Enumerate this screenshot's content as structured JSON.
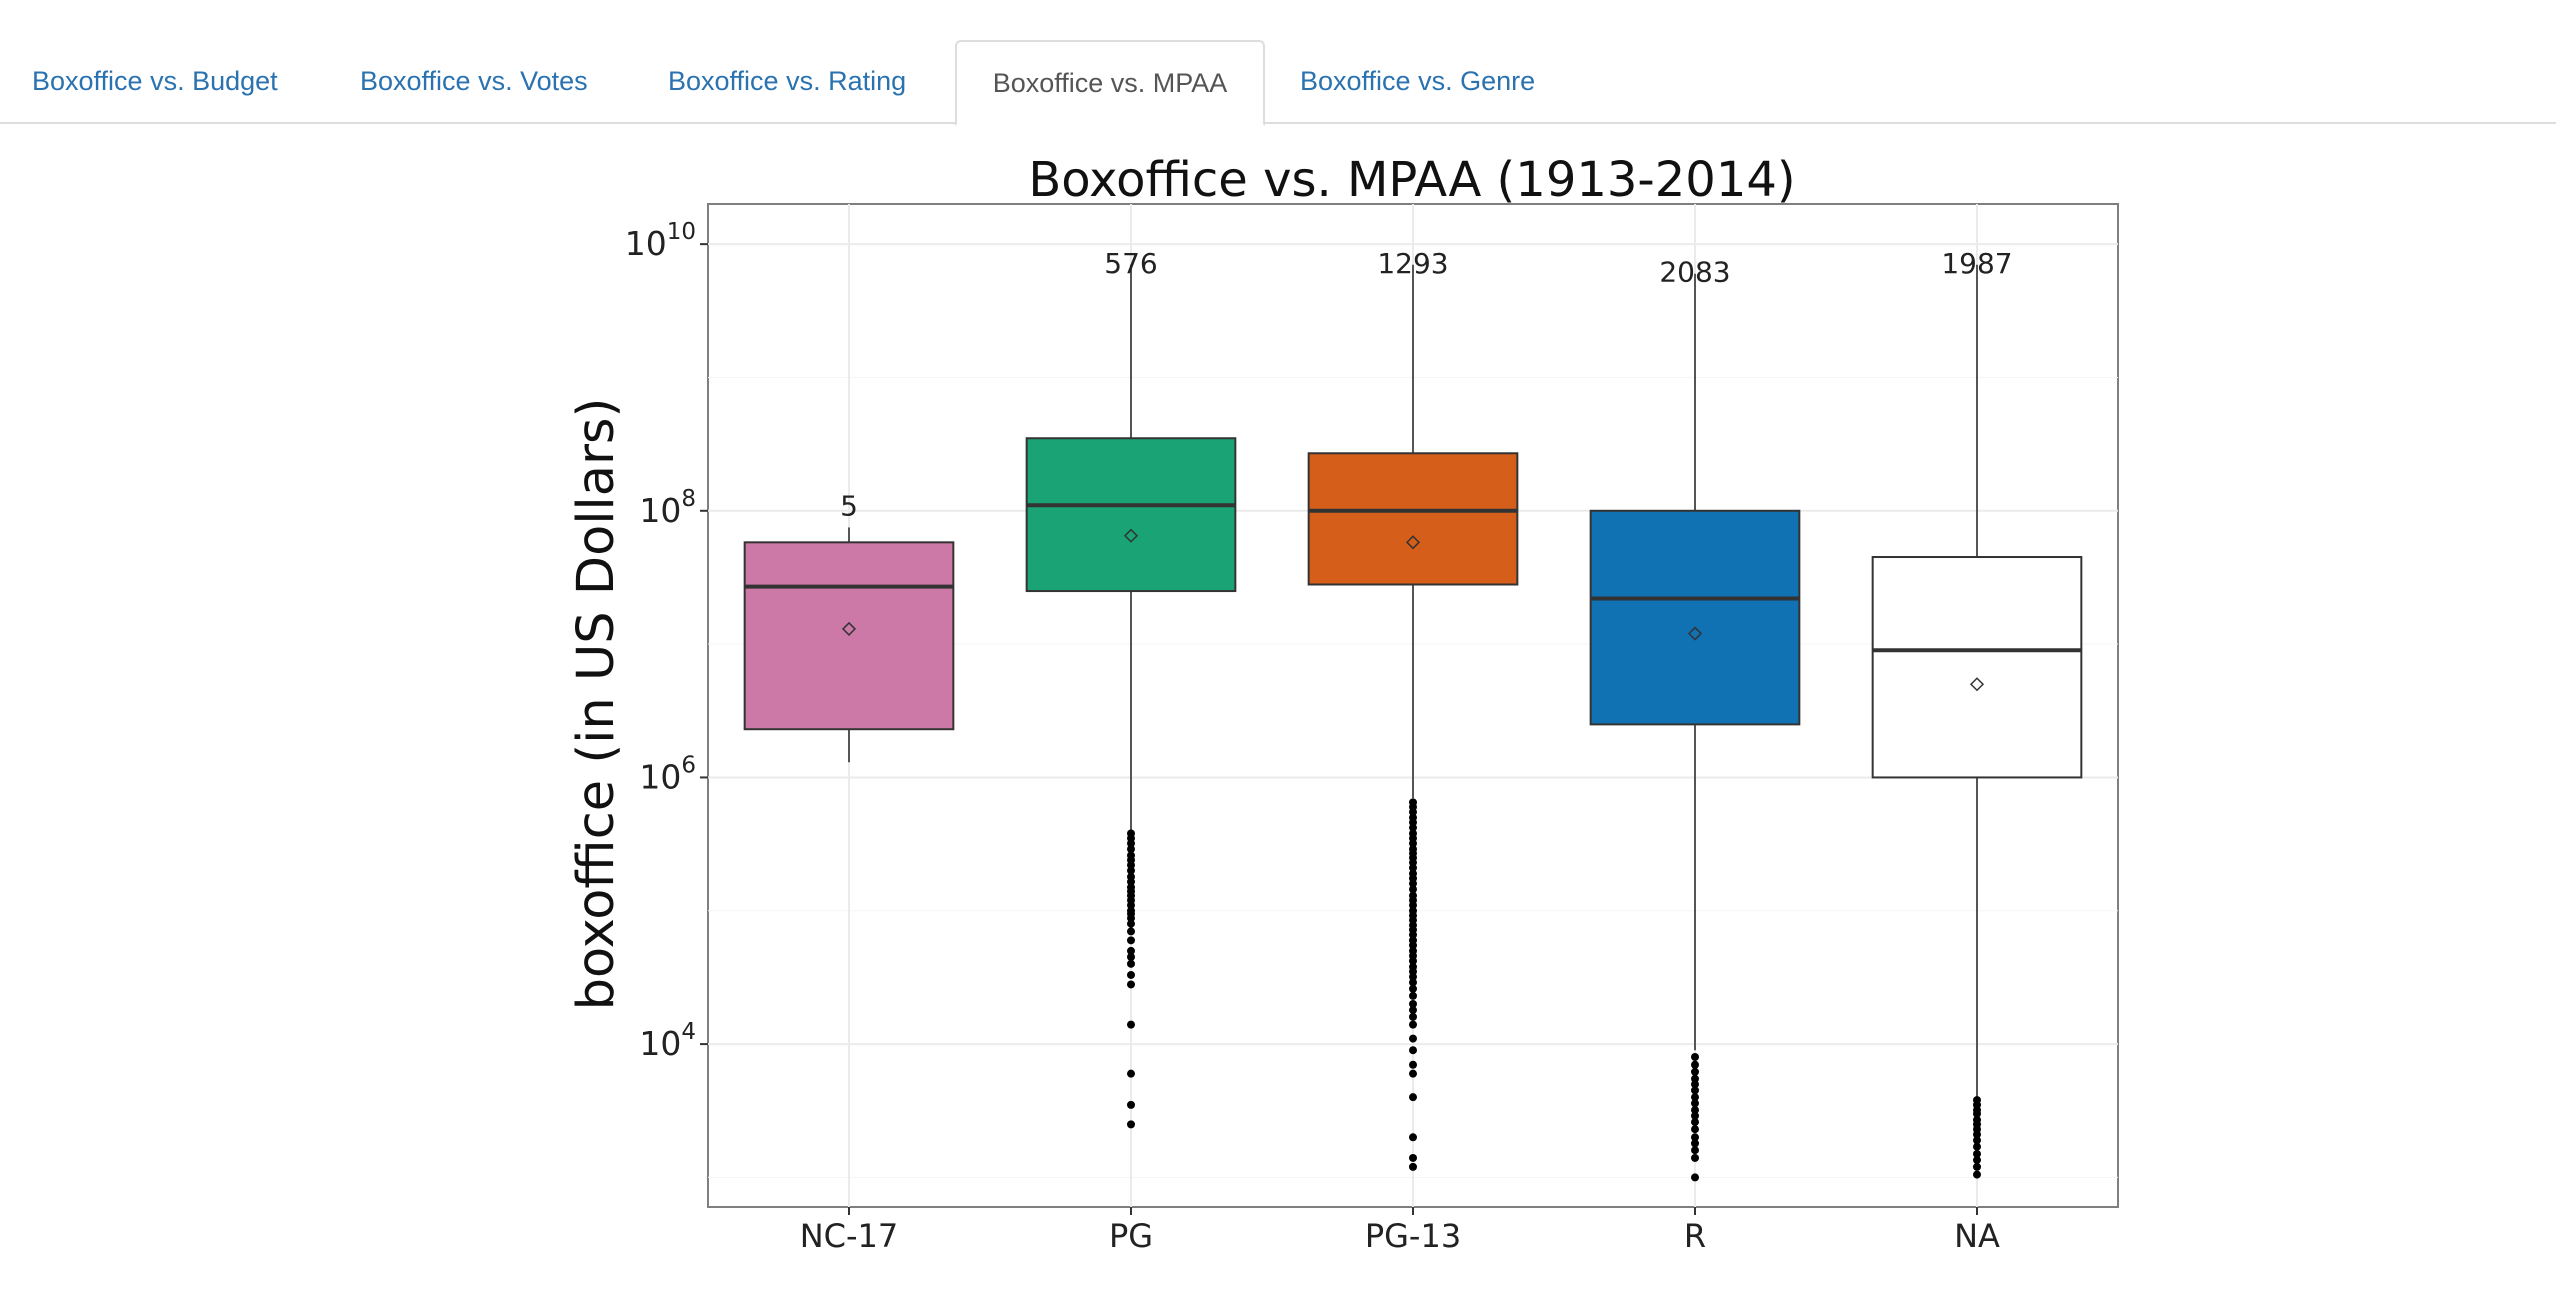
{
  "tabs": [
    {
      "label": "Boxoffice vs. Budget",
      "active": false
    },
    {
      "label": "Boxoffice vs. Votes",
      "active": false
    },
    {
      "label": "Boxoffice vs. Rating",
      "active": false
    },
    {
      "label": "Boxoffice vs. MPAA",
      "active": true
    },
    {
      "label": "Boxoffice vs. Genre",
      "active": false
    }
  ],
  "colors": {
    "tab_link": "#2a72b0",
    "tab_active": "#555555"
  },
  "chart_data": {
    "type": "box",
    "title": "Boxoffice vs. MPAA (1913-2014)",
    "xlabel": "",
    "ylabel": "boxoffice (in US Dollars)",
    "yscale": "log10",
    "ylim": [
      600,
      20000000000
    ],
    "ytick_labels": [
      {
        "base": "10",
        "exp": "4",
        "value": 10000
      },
      {
        "base": "10",
        "exp": "6",
        "value": 1000000
      },
      {
        "base": "10",
        "exp": "8",
        "value": 100000000
      },
      {
        "base": "10",
        "exp": "10",
        "value": 10000000000
      }
    ],
    "grid": true,
    "legend": "none",
    "categories": [
      "NC-17",
      "PG",
      "PG-13",
      "R",
      "NA"
    ],
    "boxes": [
      {
        "category": "NC-17",
        "count": "5",
        "color": "#cc79a7",
        "whisker_low": 1300000,
        "q1": 2300000,
        "median": 27000000,
        "q3": 58000000,
        "whisker_high": 75000000,
        "mean": 13000000,
        "outliers": []
      },
      {
        "category": "PG",
        "count": "576",
        "color": "#1aa374",
        "whisker_low": 400000,
        "q1": 25000000,
        "median": 110000000,
        "q3": 350000000,
        "whisker_high": 7000000000,
        "mean": 65000000,
        "outliers": [
          380000,
          350000,
          320000,
          290000,
          260000,
          240000,
          220000,
          200000,
          180000,
          165000,
          150000,
          140000,
          130000,
          120000,
          110000,
          100000,
          95000,
          88000,
          80000,
          70000,
          60000,
          50000,
          45000,
          40000,
          33000,
          28000,
          14000,
          6000,
          3500,
          2500
        ]
      },
      {
        "category": "PG-13",
        "count": "1293",
        "color": "#d55e1a",
        "whisker_low": 700000,
        "q1": 28000000,
        "median": 100000000,
        "q3": 270000000,
        "whisker_high": 7000000000,
        "mean": 58000000,
        "outliers": [
          650000,
          600000,
          550000,
          500000,
          460000,
          420000,
          380000,
          350000,
          320000,
          290000,
          270000,
          250000,
          230000,
          210000,
          190000,
          175000,
          160000,
          145000,
          130000,
          120000,
          110000,
          100000,
          92000,
          85000,
          78000,
          72000,
          66000,
          60000,
          55000,
          50000,
          46000,
          42000,
          38000,
          35000,
          32000,
          29000,
          26000,
          23000,
          20000,
          18000,
          16000,
          14000,
          11000,
          9000,
          7000,
          6000,
          4000,
          2000,
          1400,
          1200
        ]
      },
      {
        "category": "R",
        "count": "2083",
        "color": "#1172b3",
        "whisker_low": 9000,
        "q1": 2500000,
        "median": 22000000,
        "q3": 100000000,
        "whisker_high": 6000000000,
        "mean": 12000000,
        "outliers": [
          8000,
          7000,
          6200,
          5500,
          5000,
          4500,
          4000,
          3600,
          3200,
          2900,
          2600,
          2300,
          2000,
          1800,
          1600,
          1400,
          1000
        ]
      },
      {
        "category": "NA",
        "count": "1987",
        "color": "#ffffff",
        "whisker_low": 4000,
        "q1": 1000000,
        "median": 9000000,
        "q3": 45000000,
        "whisker_high": 7000000000,
        "mean": 5000000,
        "outliers": [
          3800,
          3500,
          3200,
          3000,
          2700,
          2500,
          2300,
          2100,
          1900,
          1700,
          1500,
          1350,
          1200,
          1050
        ]
      }
    ]
  }
}
